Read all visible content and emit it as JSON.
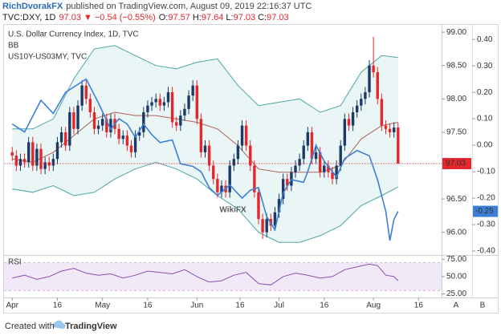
{
  "header": {
    "author": "RichDvorakFX",
    "published": "published on TradingView.com, August 09, 2019 22:16:37 UTC"
  },
  "legend": {
    "symbol": "TVC:DXY, 1D",
    "arrow": "▼",
    "change": "−0.54 (−0.55%)",
    "o": "O:",
    "h": "H:",
    "l": "L:",
    "c": "C:"
  },
  "chart_data": {
    "type": "candlestick",
    "title": "U.S. Dollar Currency Index, 1D, TVC",
    "indicator": "BB",
    "watermark": "WikiFX",
    "scale_buttons": [
      "A",
      "B"
    ],
    "up_color": "#1d3a66",
    "down_color": "#e5262c",
    "xlim": [
      -2,
      104.6
    ],
    "xticks": [
      {
        "value": 0,
        "label": "Apr"
      },
      {
        "value": 11,
        "label": "16"
      },
      {
        "value": 22,
        "label": "May"
      },
      {
        "value": 33,
        "label": "16"
      },
      {
        "value": 45,
        "label": "Jun"
      },
      {
        "value": 55.5,
        "label": "16"
      },
      {
        "value": 65,
        "label": "Jul"
      },
      {
        "value": 76,
        "label": "16"
      },
      {
        "value": 88,
        "label": "Aug"
      },
      {
        "value": 99,
        "label": "16"
      }
    ],
    "ylim": [
      95.66,
      99.11
    ],
    "yticks": [
      {
        "value": 96,
        "label": "96.00"
      },
      {
        "value": 96.5,
        "label": "96.50"
      },
      {
        "value": 97.5,
        "label": "97.50"
      },
      {
        "value": 98,
        "label": "98.00"
      },
      {
        "value": 98.5,
        "label": "98.50"
      },
      {
        "value": 99,
        "label": "99.00"
      }
    ],
    "y2lim": [
      -0.415,
      0.455
    ],
    "y2ticks": [
      {
        "value": 0.4,
        "label": "0.40"
      },
      {
        "value": 0.3,
        "label": "0.30"
      },
      {
        "value": 0.2,
        "label": "0.20"
      },
      {
        "value": 0.1,
        "label": "0.10"
      },
      {
        "value": 0,
        "label": "0.00"
      },
      {
        "value": -0.1,
        "label": "-0.10"
      },
      {
        "value": -0.2,
        "label": "-0.20"
      },
      {
        "value": -0.3,
        "label": "-0.30"
      },
      {
        "value": -0.4,
        "label": "-0.40"
      }
    ],
    "open": [
      97.2,
      97.15,
      97,
      97.1,
      97.05,
      97.35,
      97,
      97.25,
      96.95,
      97.05,
      97,
      97.1,
      97.35,
      97.5,
      97.3,
      97.8,
      97.55,
      97.9,
      98.2,
      98,
      97.8,
      97.55,
      97.6,
      97.7,
      97.5,
      97.7,
      97.55,
      97.4,
      97.45,
      97.3,
      97.2,
      97.45,
      97.5,
      97.8,
      97.9,
      97.95,
      98,
      97.9,
      97.95,
      98.1,
      97.65,
      97.6,
      97.75,
      97.85,
      98.05,
      98.2,
      97.7,
      97.2,
      97.3,
      97,
      96.8,
      96.6,
      96.7,
      96.6,
      97,
      97.1,
      97.3,
      97.6,
      97.3,
      97,
      96.6,
      96.2,
      96,
      96.2,
      96.1,
      96.3,
      96.5,
      96.8,
      96.7,
      96.9,
      97,
      97.1,
      97.3,
      97.5,
      97.1,
      97.2,
      96.9,
      97,
      96.9,
      96.8,
      97,
      97.3,
      97.7,
      97.6,
      97.8,
      97.9,
      98,
      98.1,
      98.5,
      98.4,
      98,
      97.6,
      97.55,
      97.5,
      97.57
    ],
    "high": [
      97.28,
      97.23,
      97.18,
      97.18,
      97.43,
      97.43,
      97.33,
      97.33,
      97.13,
      97.13,
      97.18,
      97.43,
      97.58,
      97.58,
      97.88,
      97.88,
      97.98,
      98.28,
      98.28,
      98.08,
      97.88,
      97.68,
      97.78,
      97.78,
      97.78,
      97.78,
      97.63,
      97.53,
      97.53,
      97.38,
      97.53,
      97.58,
      97.88,
      97.98,
      98.03,
      98.08,
      98.08,
      98.03,
      98.18,
      98.18,
      97.73,
      97.83,
      97.93,
      98.13,
      98.28,
      98.28,
      97.78,
      97.38,
      97.38,
      97.08,
      96.88,
      96.78,
      96.78,
      97.08,
      97.18,
      97.38,
      97.68,
      97.68,
      97.38,
      97.08,
      96.68,
      96.28,
      96.28,
      96.28,
      96.38,
      96.58,
      96.88,
      96.88,
      96.98,
      97.08,
      97.18,
      97.38,
      97.58,
      97.58,
      97.28,
      97.28,
      97.08,
      97.08,
      96.98,
      97.08,
      97.38,
      97.78,
      97.78,
      97.88,
      97.98,
      98.08,
      98.18,
      98.58,
      98.93,
      98.48,
      98.08,
      97.68,
      97.63,
      97.65,
      97.64
    ],
    "low": [
      97.07,
      96.92,
      96.92,
      96.97,
      96.97,
      96.92,
      96.92,
      96.87,
      96.87,
      96.92,
      96.92,
      97.02,
      97.27,
      97.22,
      97.22,
      97.47,
      97.47,
      97.82,
      97.92,
      97.72,
      97.47,
      97.47,
      97.52,
      97.42,
      97.42,
      97.47,
      97.32,
      97.32,
      97.22,
      97.12,
      97.12,
      97.37,
      97.42,
      97.72,
      97.82,
      97.87,
      97.82,
      97.82,
      97.87,
      97.57,
      97.52,
      97.52,
      97.67,
      97.77,
      97.97,
      97.62,
      97.12,
      97.12,
      96.92,
      96.72,
      96.52,
      96.52,
      96.52,
      96.52,
      96.92,
      97.02,
      97.22,
      97.22,
      96.92,
      96.52,
      96.12,
      95.9,
      95.92,
      96.02,
      96.02,
      96.22,
      96.42,
      96.62,
      96.62,
      96.82,
      96.92,
      97.02,
      97.22,
      97.02,
      97.02,
      96.82,
      96.82,
      96.82,
      96.72,
      96.72,
      96.92,
      97.22,
      97.52,
      97.52,
      97.72,
      97.82,
      97.92,
      98.02,
      98.32,
      97.92,
      97.52,
      97.47,
      97.42,
      97.42,
      97.03
    ],
    "close": [
      97.15,
      97,
      97.1,
      97.05,
      97.35,
      97,
      97.25,
      96.95,
      97.05,
      97,
      97.1,
      97.35,
      97.5,
      97.3,
      97.8,
      97.55,
      97.9,
      98.2,
      98,
      97.8,
      97.55,
      97.6,
      97.7,
      97.5,
      97.7,
      97.55,
      97.4,
      97.45,
      97.3,
      97.2,
      97.45,
      97.5,
      97.8,
      97.9,
      97.95,
      98,
      97.9,
      97.95,
      98.1,
      97.65,
      97.6,
      97.75,
      97.85,
      98.05,
      98.2,
      97.7,
      97.2,
      97.3,
      97,
      96.8,
      96.6,
      96.7,
      96.6,
      97,
      97.1,
      97.3,
      97.6,
      97.3,
      97,
      96.6,
      96.2,
      96,
      96.2,
      96.1,
      96.3,
      96.5,
      96.8,
      96.7,
      96.9,
      97,
      97.1,
      97.3,
      97.5,
      97.1,
      97.2,
      96.9,
      97,
      96.9,
      96.8,
      97,
      97.3,
      97.7,
      97.6,
      97.8,
      97.9,
      98,
      98.1,
      98.5,
      98.4,
      98,
      97.6,
      97.55,
      97.5,
      97.57,
      97.03
    ],
    "bollinger": {
      "color": "#4ea5a5",
      "middle_color": "#b0605a",
      "fill": "#e9f6f5",
      "x": [
        0,
        5,
        10,
        15,
        20,
        25,
        30,
        35,
        40,
        45,
        50,
        55,
        60,
        65,
        70,
        75,
        80,
        85,
        90,
        94
      ],
      "upper": [
        97.55,
        97.55,
        97.7,
        98.3,
        98.75,
        98.8,
        98.65,
        98.5,
        98.45,
        98.55,
        98.6,
        98.2,
        97.9,
        97.95,
        98.0,
        97.8,
        97.9,
        98.4,
        98.65,
        98.62
      ],
      "middle": [
        97.1,
        97.05,
        97.2,
        97.45,
        97.7,
        97.8,
        97.75,
        97.75,
        97.7,
        97.65,
        97.55,
        97.3,
        96.95,
        96.9,
        96.9,
        96.9,
        97.0,
        97.4,
        97.6,
        97.65
      ],
      "lower": [
        96.65,
        96.6,
        96.7,
        96.55,
        96.6,
        96.8,
        96.95,
        97.05,
        96.95,
        96.8,
        96.55,
        96.35,
        96.0,
        95.85,
        95.85,
        95.95,
        96.1,
        96.4,
        96.55,
        96.68
      ]
    },
    "series": [
      {
        "name": "US10Y-US03MY, TVC",
        "color": "#3d7fd6",
        "axis": "y2",
        "x": [
          0,
          3,
          7,
          10,
          13,
          15,
          18,
          21,
          24,
          26,
          28,
          30,
          32,
          34,
          36,
          39,
          41,
          44,
          46,
          48,
          50,
          53,
          56,
          58,
          60,
          62,
          64,
          66,
          68,
          71,
          72,
          74,
          76,
          79,
          81,
          84,
          87,
          89,
          91,
          92,
          93,
          94
        ],
        "values": [
          0.08,
          0.05,
          0.17,
          0.12,
          0.2,
          0.22,
          0.25,
          0.16,
          0.06,
          0.1,
          0.08,
          0.03,
          0.08,
          0.04,
          0.01,
          0.02,
          -0.07,
          -0.08,
          -0.1,
          -0.16,
          -0.19,
          -0.15,
          -0.2,
          -0.17,
          -0.16,
          -0.27,
          -0.32,
          -0.18,
          -0.13,
          -0.14,
          -0.1,
          0,
          -0.06,
          -0.12,
          -0.05,
          -0.02,
          -0.04,
          -0.13,
          -0.25,
          -0.36,
          -0.28,
          -0.25
        ]
      }
    ],
    "rsi": {
      "title": "RSI",
      "color": "#8a4fb0",
      "band_color": "#f2e9f8",
      "ylim": [
        21,
        80
      ],
      "yticks": [
        {
          "value": 75,
          "label": "75.00"
        },
        {
          "value": 50,
          "label": "50.00"
        },
        {
          "value": 25,
          "label": "25.00"
        }
      ],
      "band": [
        30,
        70
      ],
      "x": [
        0,
        3,
        6,
        9,
        12,
        15,
        18,
        21,
        24,
        27,
        30,
        33,
        36,
        39,
        42,
        45,
        48,
        51,
        54,
        57,
        60,
        63,
        66,
        69,
        72,
        75,
        78,
        81,
        84,
        87,
        89,
        91,
        93,
        94
      ],
      "values": [
        48,
        52,
        46,
        50,
        58,
        62,
        55,
        52,
        54,
        48,
        52,
        58,
        56,
        54,
        60,
        50,
        42,
        44,
        52,
        56,
        40,
        38,
        50,
        55,
        52,
        48,
        50,
        60,
        64,
        68,
        66,
        52,
        50,
        44
      ]
    }
  },
  "footer": {
    "text": "Created with",
    "brand": "TradingView"
  }
}
